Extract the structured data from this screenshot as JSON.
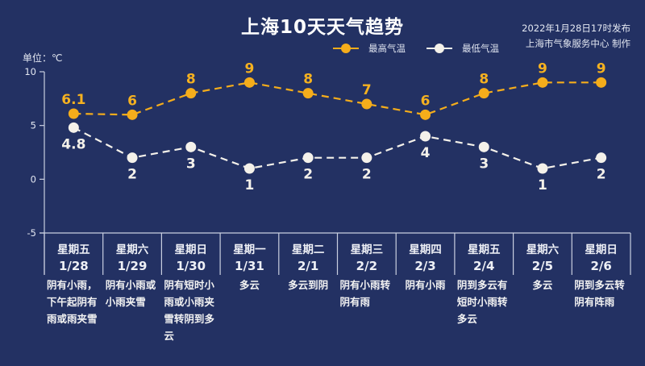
{
  "header": {
    "title": "上海10天天气趋势",
    "published": "2022年1月28日17时发布",
    "producer": "上海市气象服务中心 制作",
    "unit_label": "单位：℃"
  },
  "legend": [
    {
      "name": "最高气温",
      "color": "#f5ad1b",
      "icon": "line-dot-orange-icon"
    },
    {
      "name": "最低气温",
      "color": "#f4f1ea",
      "icon": "line-dot-white-icon"
    }
  ],
  "yaxis": {
    "ticks": [
      "10",
      "5",
      "0",
      "-5"
    ]
  },
  "days": [
    {
      "weekday": "星期五",
      "date": "1/28",
      "desc": "阴有小雨，下午起阴有雨或雨夹雪",
      "lines": [
        "阴有小雨，",
        "下午起阴有",
        "雨或雨夹雪"
      ]
    },
    {
      "weekday": "星期六",
      "date": "1/29",
      "desc": "阴有小雨或小雨夹雪",
      "lines": [
        "阴有小雨或",
        "小雨夹雪"
      ]
    },
    {
      "weekday": "星期日",
      "date": "1/30",
      "desc": "阴有短时小雨或小雨夹雪转阴到多云",
      "lines": [
        "阴有短时小",
        "雨或小雨夹",
        "雪转阴到多",
        "云"
      ]
    },
    {
      "weekday": "星期一",
      "date": "1/31",
      "desc": "多云",
      "lines": [
        "多云"
      ]
    },
    {
      "weekday": "星期二",
      "date": "2/1",
      "desc": "多云到阴",
      "lines": [
        "多云到阴"
      ]
    },
    {
      "weekday": "星期三",
      "date": "2/2",
      "desc": "阴有小雨转阴有雨",
      "lines": [
        "阴有小雨转",
        "阴有雨"
      ]
    },
    {
      "weekday": "星期四",
      "date": "2/3",
      "desc": "阴有小雨",
      "lines": [
        "阴有小雨"
      ]
    },
    {
      "weekday": "星期五",
      "date": "2/4",
      "desc": "阴到多云有短时小雨转多云",
      "lines": [
        "阴到多云有",
        "短时小雨转",
        "多云"
      ]
    },
    {
      "weekday": "星期六",
      "date": "2/5",
      "desc": "多云",
      "lines": [
        "多云"
      ]
    },
    {
      "weekday": "星期日",
      "date": "2/6",
      "desc": "阴到多云转阴有阵雨",
      "lines": [
        "阴到多云转",
        "阴有阵雨"
      ]
    }
  ],
  "chart_data": {
    "type": "line",
    "title": "上海10天天气趋势",
    "subtitle": "2022年1月28日17时发布 / 上海市气象服务中心 制作",
    "xlabel": "",
    "ylabel": "单位：℃",
    "ylim": [
      -5,
      10
    ],
    "yticks": [
      -5,
      0,
      5,
      10
    ],
    "grid": false,
    "legend_position": "top",
    "categories": [
      "星期五 1/28",
      "星期六 1/29",
      "星期日 1/30",
      "星期一 1/31",
      "星期二 2/1",
      "星期三 2/2",
      "星期四 2/3",
      "星期五 2/4",
      "星期六 2/5",
      "星期日 2/6"
    ],
    "series": [
      {
        "name": "最高气温",
        "color": "#f5ad1b",
        "style": "dashed",
        "values": [
          6.1,
          6,
          8,
          9,
          8,
          7,
          6,
          8,
          9,
          9
        ],
        "labels": [
          "6.1",
          "6",
          "8",
          "9",
          "8",
          "7",
          "6",
          "8",
          "9",
          "9"
        ]
      },
      {
        "name": "最低气温",
        "color": "#f4f1ea",
        "style": "dashed",
        "values": [
          4.8,
          2,
          3,
          1,
          2,
          2,
          4,
          3,
          1,
          2
        ],
        "labels": [
          "4.8",
          "2",
          "3",
          "1",
          "2",
          "2",
          "4",
          "3",
          "1",
          "2"
        ]
      }
    ]
  }
}
